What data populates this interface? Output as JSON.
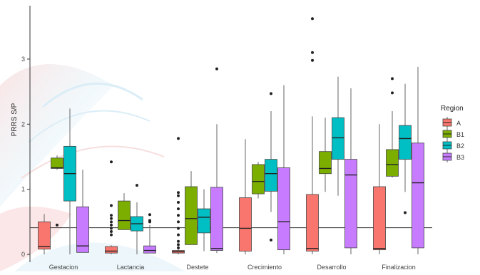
{
  "chart_data": {
    "type": "boxplot",
    "ylabel": "PRRS S/P",
    "xlabel": "",
    "ylim": [
      -0.12,
      3.82
    ],
    "yticks": [
      0,
      1,
      2,
      3
    ],
    "reference_line": 0.41,
    "legend": {
      "title": "Region",
      "placement": "right",
      "entries": [
        "A",
        "B1",
        "B2",
        "B3"
      ]
    },
    "colors": {
      "A": "#F8766D",
      "B1": "#7CAE00",
      "B2": "#00BFC4",
      "B3": "#C77CFF"
    },
    "categories": [
      "Gestacion",
      "Lactancia",
      "Destete",
      "Crecimiento",
      "Desarrollo",
      "Finalizacion"
    ],
    "series": [
      {
        "name": "A",
        "boxes": [
          {
            "lo": 0.0,
            "q1": 0.08,
            "med": 0.12,
            "q3": 0.5,
            "hi": 0.62,
            "outliers": []
          },
          {
            "lo": 0.0,
            "q1": 0.02,
            "med": 0.05,
            "q3": 0.12,
            "hi": 0.14,
            "outliers": [
              0.3,
              0.35,
              0.4,
              0.45,
              0.5,
              0.55,
              0.6,
              0.75,
              1.42
            ]
          },
          {
            "lo": 0.0,
            "q1": 0.02,
            "med": 0.04,
            "q3": 0.06,
            "hi": 0.08,
            "outliers": [
              0.1,
              0.15,
              0.2,
              0.3,
              0.4,
              0.5,
              0.6,
              0.7,
              0.8,
              0.9,
              0.95,
              1.78
            ]
          },
          {
            "lo": 0.0,
            "q1": 0.05,
            "med": 0.4,
            "q3": 0.87,
            "hi": 1.77,
            "outliers": []
          },
          {
            "lo": 0.0,
            "q1": 0.05,
            "med": 0.09,
            "q3": 0.92,
            "hi": 2.12,
            "outliers": [
              2.98,
              3.1,
              3.62
            ]
          },
          {
            "lo": 0.0,
            "q1": 0.07,
            "med": 0.09,
            "q3": 1.04,
            "hi": 2.0,
            "outliers": []
          }
        ]
      },
      {
        "name": "B1",
        "boxes": [
          {
            "lo": 1.3,
            "q1": 1.32,
            "med": 1.33,
            "q3": 1.48,
            "hi": 1.52,
            "outliers": [
              0.45
            ]
          },
          {
            "lo": 0.38,
            "q1": 0.38,
            "med": 0.52,
            "q3": 0.82,
            "hi": 0.94,
            "outliers": []
          },
          {
            "lo": 0.15,
            "q1": 0.15,
            "med": 0.55,
            "q3": 1.04,
            "hi": 1.28,
            "outliers": []
          },
          {
            "lo": 0.86,
            "q1": 0.93,
            "med": 1.12,
            "q3": 1.38,
            "hi": 1.42,
            "outliers": []
          },
          {
            "lo": 0.96,
            "q1": 1.24,
            "med": 1.32,
            "q3": 1.58,
            "hi": 2.1,
            "outliers": []
          },
          {
            "lo": 1.18,
            "q1": 1.2,
            "med": 1.38,
            "q3": 1.61,
            "hi": 2.2,
            "outliers": [
              2.48,
              2.7
            ]
          }
        ]
      },
      {
        "name": "B2",
        "boxes": [
          {
            "lo": 0.0,
            "q1": 0.82,
            "med": 1.24,
            "q3": 1.66,
            "hi": 2.24,
            "outliers": []
          },
          {
            "lo": 0.0,
            "q1": 0.36,
            "med": 0.47,
            "q3": 0.58,
            "hi": 0.8,
            "outliers": [
              1.06
            ]
          },
          {
            "lo": 0.05,
            "q1": 0.33,
            "med": 0.57,
            "q3": 0.7,
            "hi": 1.0,
            "outliers": []
          },
          {
            "lo": 0.65,
            "q1": 0.97,
            "med": 1.24,
            "q3": 1.46,
            "hi": 2.2,
            "outliers": [
              0.22,
              2.47
            ]
          },
          {
            "lo": 0.9,
            "q1": 1.46,
            "med": 1.79,
            "q3": 2.1,
            "hi": 2.73,
            "outliers": []
          },
          {
            "lo": 0.96,
            "q1": 1.46,
            "med": 1.78,
            "q3": 1.98,
            "hi": 2.62,
            "outliers": [
              0.64
            ]
          }
        ]
      },
      {
        "name": "B3",
        "boxes": [
          {
            "lo": 0.03,
            "q1": 0.03,
            "med": 0.13,
            "q3": 0.73,
            "hi": 1.3,
            "outliers": []
          },
          {
            "lo": 0.02,
            "q1": 0.02,
            "med": 0.06,
            "q3": 0.13,
            "hi": 0.45,
            "outliers": [
              0.5,
              0.52,
              0.61
            ]
          },
          {
            "lo": 0.02,
            "q1": 0.06,
            "med": 0.09,
            "q3": 1.03,
            "hi": 2.0,
            "outliers": [
              2.85
            ]
          },
          {
            "lo": 0.0,
            "q1": 0.07,
            "med": 0.5,
            "q3": 1.33,
            "hi": 2.6,
            "outliers": []
          },
          {
            "lo": 0.0,
            "q1": 0.1,
            "med": 1.22,
            "q3": 1.46,
            "hi": 2.55,
            "outliers": []
          },
          {
            "lo": 0.0,
            "q1": 0.1,
            "med": 1.1,
            "q3": 1.71,
            "hi": 2.88,
            "outliers": []
          }
        ]
      }
    ]
  }
}
